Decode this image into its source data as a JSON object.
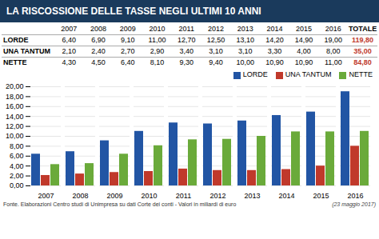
{
  "chart_data": {
    "type": "bar",
    "title": "LA RISCOSSIONE DELLE TASSE NEGLI ULTIMI 10 ANNI",
    "categories": [
      "2007",
      "2008",
      "2009",
      "2010",
      "2011",
      "2012",
      "2013",
      "2014",
      "2015",
      "2016"
    ],
    "series": [
      {
        "name": "LORDE",
        "color": "#2255a4",
        "values": [
          6.4,
          6.9,
          9.1,
          11.0,
          12.7,
          12.5,
          13.1,
          14.2,
          14.9,
          19.0
        ],
        "value_labels": [
          "6,40",
          "6,90",
          "9,10",
          "11,00",
          "12,70",
          "12,50",
          "13,10",
          "14,20",
          "14,90",
          "19,00"
        ]
      },
      {
        "name": "UNA TANTUM",
        "color": "#c0392b",
        "values": [
          2.1,
          2.4,
          2.7,
          2.9,
          3.4,
          3.1,
          3.1,
          3.3,
          4.0,
          8.0
        ],
        "value_labels": [
          "2,10",
          "2,40",
          "2,70",
          "2,90",
          "3,40",
          "3,10",
          "3,10",
          "3,30",
          "4,00",
          "8,00"
        ]
      },
      {
        "name": "NETTE",
        "color": "#6aaa3a",
        "values": [
          4.3,
          4.5,
          6.4,
          8.1,
          9.3,
          9.4,
          10.0,
          10.9,
          10.9,
          11.0
        ],
        "value_labels": [
          "4,30",
          "4,50",
          "6,40",
          "8,10",
          "9,30",
          "9,40",
          "10,00",
          "10,90",
          "10,90",
          "11,00"
        ]
      }
    ],
    "table": {
      "total_header": "TOTALE",
      "totals": [
        {
          "value": 119.8,
          "label": "119,80"
        },
        {
          "value": 35.0,
          "label": "35,00"
        },
        {
          "value": 84.8,
          "label": "84,80"
        }
      ]
    },
    "ylim": [
      0,
      20
    ],
    "yticks": [
      {
        "value": 0,
        "label": "0,00"
      },
      {
        "value": 2,
        "label": "2,00"
      },
      {
        "value": 4,
        "label": "4,00"
      },
      {
        "value": 6,
        "label": "6,00"
      },
      {
        "value": 8,
        "label": "8,00"
      },
      {
        "value": 10,
        "label": "10,00"
      },
      {
        "value": 12,
        "label": "12,00"
      },
      {
        "value": 14,
        "label": "14,00"
      },
      {
        "value": 16,
        "label": "16,00"
      },
      {
        "value": 18,
        "label": "18,00"
      },
      {
        "value": 20,
        "label": "20,00"
      }
    ],
    "grid": true,
    "legend": "upper right",
    "caption": "Fonte. Elaborazioni Centro studi di Unimpresa su dati Corte dei conti - Valori in miliardi di euro",
    "date": "(23 maggio 2017)"
  }
}
